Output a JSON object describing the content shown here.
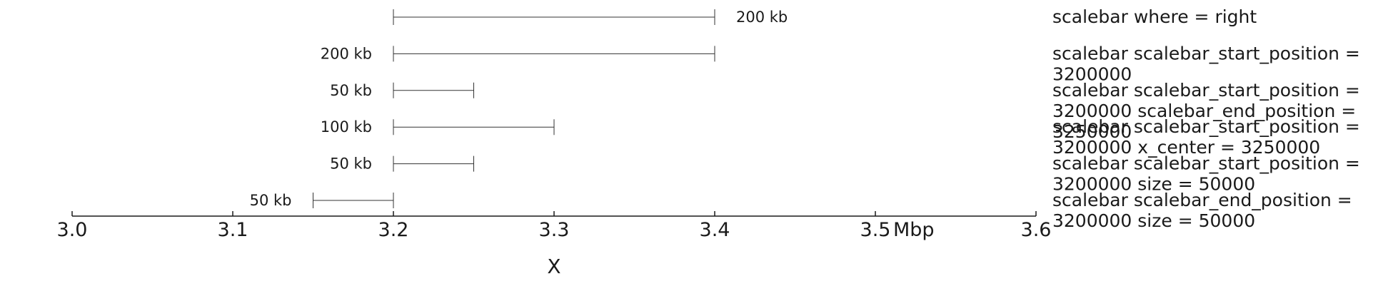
{
  "chart_data": {
    "type": "scalebar",
    "xlabel": "X",
    "axis": {
      "unit": "Mbp",
      "xlim": [
        3.0,
        3.6
      ],
      "ticks": [
        3.0,
        3.1,
        3.2,
        3.3,
        3.4,
        3.5,
        3.6
      ],
      "tick_labels": [
        "3.0",
        "3.1",
        "3.2",
        "3.3",
        "3.4",
        "3.5",
        "3.6"
      ]
    },
    "tracks": [
      {
        "title_lines": [
          "scalebar where = right"
        ],
        "start": 3.2,
        "end": 3.4,
        "label": "200 kb",
        "label_side": "right"
      },
      {
        "title_lines": [
          "scalebar scalebar_start_position =",
          "3200000"
        ],
        "start": 3.2,
        "end": 3.4,
        "label": "200 kb",
        "label_side": "left"
      },
      {
        "title_lines": [
          "scalebar scalebar_start_position =",
          "3200000 scalebar_end_position =",
          "3250000"
        ],
        "start": 3.2,
        "end": 3.25,
        "label": "50 kb",
        "label_side": "left"
      },
      {
        "title_lines": [
          "scalebar scalebar_start_position =",
          "3200000 x_center = 3250000"
        ],
        "start": 3.2,
        "end": 3.3,
        "label": "100 kb",
        "label_side": "left"
      },
      {
        "title_lines": [
          "scalebar scalebar_start_position =",
          "3200000 size = 50000"
        ],
        "start": 3.2,
        "end": 3.25,
        "label": "50 kb",
        "label_side": "left"
      },
      {
        "title_lines": [
          "scalebar scalebar_end_position =",
          "3200000 size = 50000"
        ],
        "start": 3.15,
        "end": 3.2,
        "label": "50 kb",
        "label_side": "left"
      }
    ]
  }
}
